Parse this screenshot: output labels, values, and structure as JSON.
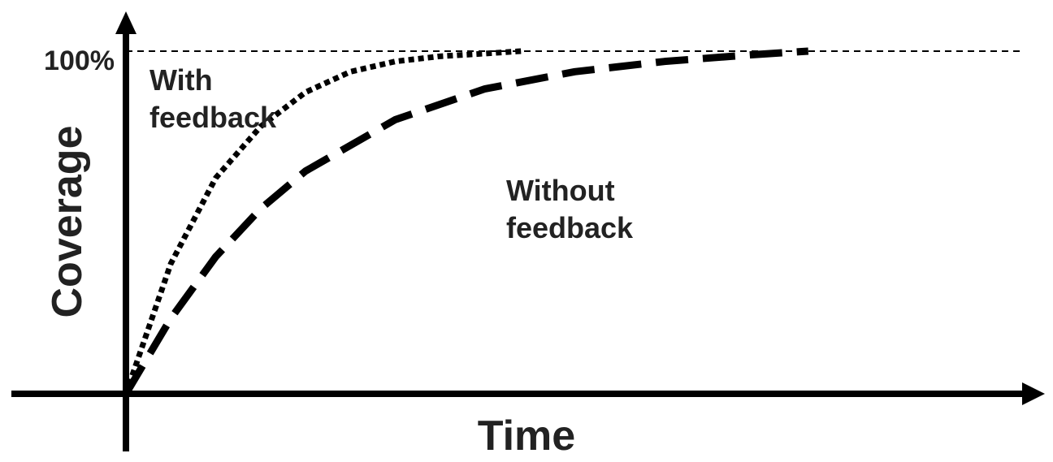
{
  "chart_data": {
    "type": "line",
    "xlabel": "Time",
    "ylabel": "Coverage",
    "ytick_labels": [
      "100%"
    ],
    "yticks": [
      100
    ],
    "xlim": [
      0,
      100
    ],
    "ylim": [
      0,
      100
    ],
    "grid": false,
    "reference_line": {
      "y": 100,
      "style": "dashed"
    },
    "series": [
      {
        "annotation": [
          "With",
          "feedback"
        ],
        "style": "dotted",
        "points": [
          {
            "x": 0,
            "y": 0
          },
          {
            "x": 5,
            "y": 38
          },
          {
            "x": 10,
            "y": 63
          },
          {
            "x": 15,
            "y": 78
          },
          {
            "x": 20,
            "y": 88
          },
          {
            "x": 25,
            "y": 94
          },
          {
            "x": 30,
            "y": 97
          },
          {
            "x": 35,
            "y": 98.5
          },
          {
            "x": 40,
            "y": 99.3
          },
          {
            "x": 44,
            "y": 100
          }
        ]
      },
      {
        "annotation": [
          "Without",
          "feedback"
        ],
        "style": "dashed",
        "points": [
          {
            "x": 0,
            "y": 0
          },
          {
            "x": 5,
            "y": 22
          },
          {
            "x": 10,
            "y": 40
          },
          {
            "x": 15,
            "y": 54
          },
          {
            "x": 20,
            "y": 65
          },
          {
            "x": 30,
            "y": 80
          },
          {
            "x": 40,
            "y": 89
          },
          {
            "x": 50,
            "y": 94
          },
          {
            "x": 60,
            "y": 97
          },
          {
            "x": 70,
            "y": 99
          },
          {
            "x": 76,
            "y": 100
          }
        ]
      }
    ],
    "colors": {
      "axis": "#000000",
      "text": "#222222",
      "background": "#ffffff"
    }
  }
}
